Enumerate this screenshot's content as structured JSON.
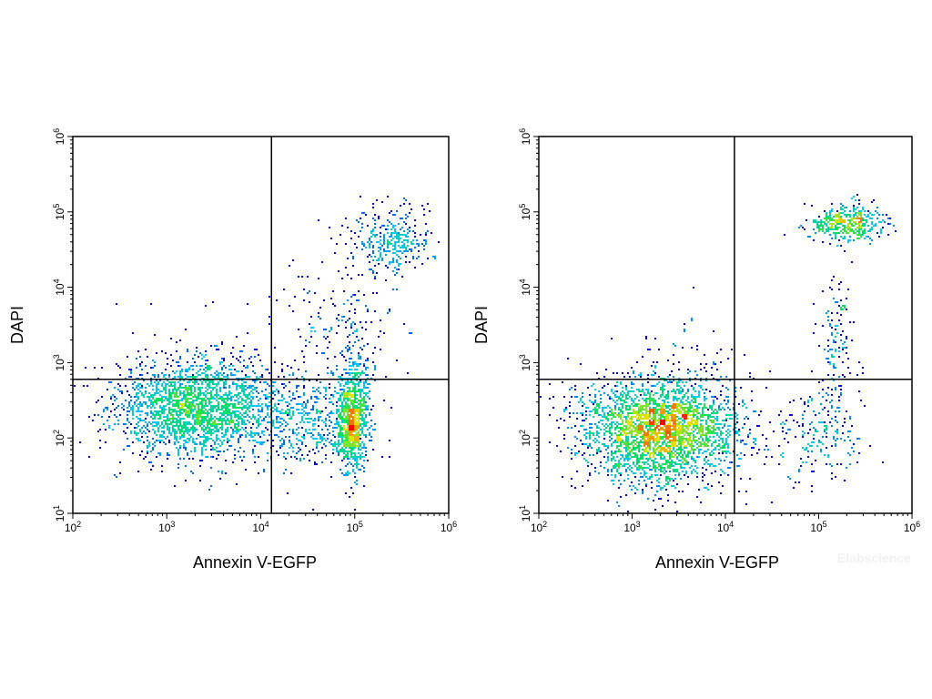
{
  "chart_data": [
    {
      "type": "scatter",
      "style": "density-dot-plot",
      "xlabel": "Annexin V-EGFP",
      "ylabel": "DAPI",
      "x_scale": "log",
      "y_scale": "log",
      "xlim": [
        100,
        1000000
      ],
      "ylim": [
        10,
        1000000
      ],
      "x_tick_labels": [
        {
          "base": "10",
          "exp": "2"
        },
        {
          "base": "10",
          "exp": "3"
        },
        {
          "base": "10",
          "exp": "4"
        },
        {
          "base": "10",
          "exp": "5"
        },
        {
          "base": "10",
          "exp": "6"
        }
      ],
      "y_tick_labels": [
        {
          "base": "10",
          "exp": "1"
        },
        {
          "base": "10",
          "exp": "2"
        },
        {
          "base": "10",
          "exp": "3"
        },
        {
          "base": "10",
          "exp": "4"
        },
        {
          "base": "10",
          "exp": "5"
        },
        {
          "base": "10",
          "exp": "6"
        }
      ],
      "quadrant_gates": {
        "x": 13000,
        "y": 600
      },
      "grid": false,
      "populations": [
        {
          "region": "lower-left",
          "center_x": 2200,
          "center_y": 250,
          "log_sd_x": 0.45,
          "log_sd_y": 0.32,
          "events": 2300
        },
        {
          "region": "lower-right",
          "center_x": 95000,
          "center_y": 180,
          "log_sd_x": 0.08,
          "log_sd_y": 0.35,
          "events": 950
        },
        {
          "region": "lower-right",
          "center_x": 35000,
          "center_y": 160,
          "log_sd_x": 0.3,
          "log_sd_y": 0.3,
          "events": 420
        },
        {
          "region": "upper-right",
          "center_x": 250000,
          "center_y": 40000,
          "log_sd_x": 0.22,
          "log_sd_y": 0.22,
          "events": 320
        },
        {
          "region": "upper-right",
          "center_x": 70000,
          "center_y": 3000,
          "log_sd_x": 0.3,
          "log_sd_y": 0.5,
          "events": 200
        },
        {
          "region": "upper-left",
          "center_x": 3000,
          "center_y": 1500,
          "log_sd_x": 0.4,
          "log_sd_y": 0.4,
          "events": 25
        }
      ],
      "color_scale": [
        "#0000ff",
        "#00c8ff",
        "#00e060",
        "#e8e800",
        "#ff0000"
      ]
    },
    {
      "type": "scatter",
      "style": "density-dot-plot",
      "xlabel": "Annexin V-EGFP",
      "ylabel": "DAPI",
      "x_scale": "log",
      "y_scale": "log",
      "xlim": [
        100,
        1000000
      ],
      "ylim": [
        10,
        1000000
      ],
      "x_tick_labels": [
        {
          "base": "10",
          "exp": "2"
        },
        {
          "base": "10",
          "exp": "3"
        },
        {
          "base": "10",
          "exp": "4"
        },
        {
          "base": "10",
          "exp": "5"
        },
        {
          "base": "10",
          "exp": "6"
        }
      ],
      "y_tick_labels": [
        {
          "base": "10",
          "exp": "1"
        },
        {
          "base": "10",
          "exp": "2"
        },
        {
          "base": "10",
          "exp": "3"
        },
        {
          "base": "10",
          "exp": "4"
        },
        {
          "base": "10",
          "exp": "5"
        },
        {
          "base": "10",
          "exp": "6"
        }
      ],
      "quadrant_gates": {
        "x": 12500,
        "y": 600
      },
      "grid": false,
      "populations": [
        {
          "region": "lower-left",
          "center_x": 2000,
          "center_y": 130,
          "log_sd_x": 0.42,
          "log_sd_y": 0.35,
          "events": 2900
        },
        {
          "region": "upper-right",
          "center_x": 200000,
          "center_y": 70000,
          "log_sd_x": 0.2,
          "log_sd_y": 0.12,
          "events": 420
        },
        {
          "region": "upper-right",
          "center_x": 150000,
          "center_y": 1500,
          "log_sd_x": 0.1,
          "log_sd_y": 0.55,
          "events": 160
        },
        {
          "region": "lower-right",
          "center_x": 90000,
          "center_y": 100,
          "log_sd_x": 0.25,
          "log_sd_y": 0.3,
          "events": 170
        },
        {
          "region": "upper-left",
          "center_x": 3000,
          "center_y": 2000,
          "log_sd_x": 0.4,
          "log_sd_y": 0.4,
          "events": 15
        }
      ],
      "color_scale": [
        "#0000ff",
        "#00c8ff",
        "#00e060",
        "#e8e800",
        "#ff0000"
      ]
    }
  ],
  "watermark": "Elabscience"
}
